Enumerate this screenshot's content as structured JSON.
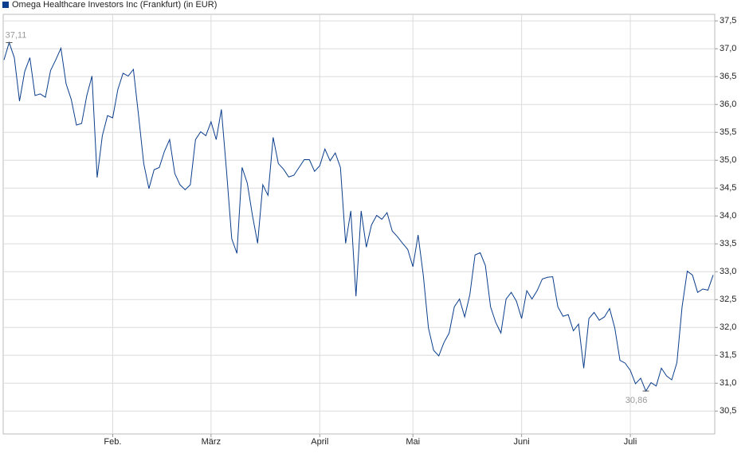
{
  "chart_data": {
    "type": "line",
    "series": [
      {
        "name": "Omega Healthcare Investors Inc (Frankfurt) (in EUR)",
        "color": "#0b3e8c",
        "values": [
          36.8,
          37.11,
          36.84,
          36.06,
          36.59,
          36.84,
          36.16,
          36.19,
          36.13,
          36.61,
          36.8,
          37.01,
          36.37,
          36.09,
          35.63,
          35.66,
          36.16,
          36.51,
          34.69,
          35.44,
          35.8,
          35.76,
          36.27,
          36.56,
          36.51,
          36.63,
          35.8,
          34.94,
          34.49,
          34.83,
          34.87,
          35.16,
          35.37,
          34.76,
          34.56,
          34.47,
          34.56,
          35.37,
          35.51,
          35.44,
          35.69,
          35.37,
          35.91,
          34.8,
          33.59,
          33.33,
          34.87,
          34.59,
          34.01,
          33.51,
          34.56,
          34.37,
          35.41,
          34.94,
          34.84,
          34.7,
          34.73,
          34.87,
          35.01,
          35.01,
          34.8,
          34.9,
          35.2,
          34.99,
          35.13,
          34.87,
          33.51,
          34.09,
          32.56,
          34.09,
          33.44,
          33.84,
          34.01,
          33.94,
          34.06,
          33.73,
          33.63,
          33.51,
          33.4,
          33.09,
          33.66,
          32.94,
          31.99,
          31.59,
          31.49,
          31.73,
          31.9,
          32.37,
          32.51,
          32.19,
          32.59,
          33.3,
          33.34,
          33.11,
          32.37,
          32.09,
          31.9,
          32.51,
          32.63,
          32.47,
          32.16,
          32.66,
          32.51,
          32.66,
          32.87,
          32.9,
          32.91,
          32.37,
          32.2,
          32.23,
          31.94,
          32.06,
          31.27,
          32.16,
          32.27,
          32.13,
          32.19,
          32.34,
          31.99,
          31.41,
          31.36,
          31.23,
          30.99,
          31.09,
          30.86,
          31.01,
          30.95,
          31.27,
          31.13,
          31.06,
          31.37,
          32.37,
          33.01,
          32.94,
          32.63,
          32.69,
          32.67,
          32.94
        ]
      }
    ],
    "categories": [
      null,
      null,
      null,
      null,
      null,
      null,
      null,
      null,
      null,
      null,
      null,
      null,
      null,
      null,
      null,
      null,
      null,
      null,
      null,
      null,
      null,
      "Feb.",
      null,
      null,
      null,
      null,
      null,
      null,
      null,
      null,
      null,
      null,
      null,
      null,
      null,
      null,
      null,
      null,
      null,
      null,
      "März",
      null,
      null,
      null,
      null,
      null,
      null,
      null,
      null,
      null,
      null,
      null,
      null,
      null,
      null,
      null,
      null,
      null,
      null,
      null,
      null,
      "April",
      null,
      null,
      null,
      null,
      null,
      null,
      null,
      null,
      null,
      null,
      null,
      null,
      null,
      null,
      null,
      null,
      null,
      "Mai",
      null,
      null,
      null,
      null,
      null,
      null,
      null,
      null,
      null,
      null,
      null,
      null,
      null,
      null,
      null,
      null,
      null,
      null,
      null,
      null,
      "Juni",
      null,
      null,
      null,
      null,
      null,
      null,
      null,
      null,
      null,
      null,
      null,
      null,
      null,
      null,
      null,
      null,
      null,
      null,
      null,
      null,
      "Juli",
      null,
      null,
      null,
      null,
      null,
      null,
      null,
      null,
      null,
      null,
      null,
      null,
      null,
      null,
      null,
      null
    ],
    "ylim": [
      30.09,
      37.56
    ],
    "yticks": [
      {
        "value": 30.5,
        "label": "30,5"
      },
      {
        "value": 31,
        "label": "31,0"
      },
      {
        "value": 31.5,
        "label": "31,5"
      },
      {
        "value": 32,
        "label": "32,0"
      },
      {
        "value": 32.5,
        "label": "32,5"
      },
      {
        "value": 33,
        "label": "33,0"
      },
      {
        "value": 33.5,
        "label": "33,5"
      },
      {
        "value": 34,
        "label": "34,0"
      },
      {
        "value": 34.5,
        "label": "34,5"
      },
      {
        "value": 35,
        "label": "35,0"
      },
      {
        "value": 35.5,
        "label": "35,5"
      },
      {
        "value": 36,
        "label": "36,0"
      },
      {
        "value": 36.5,
        "label": "36,5"
      },
      {
        "value": 37,
        "label": "37,0"
      },
      {
        "value": 37.5,
        "label": "37,5"
      }
    ],
    "annotations": [
      {
        "label": "37,11",
        "value": 37.11
      },
      {
        "label": "30,86",
        "value": 30.86
      }
    ],
    "grid": true
  }
}
